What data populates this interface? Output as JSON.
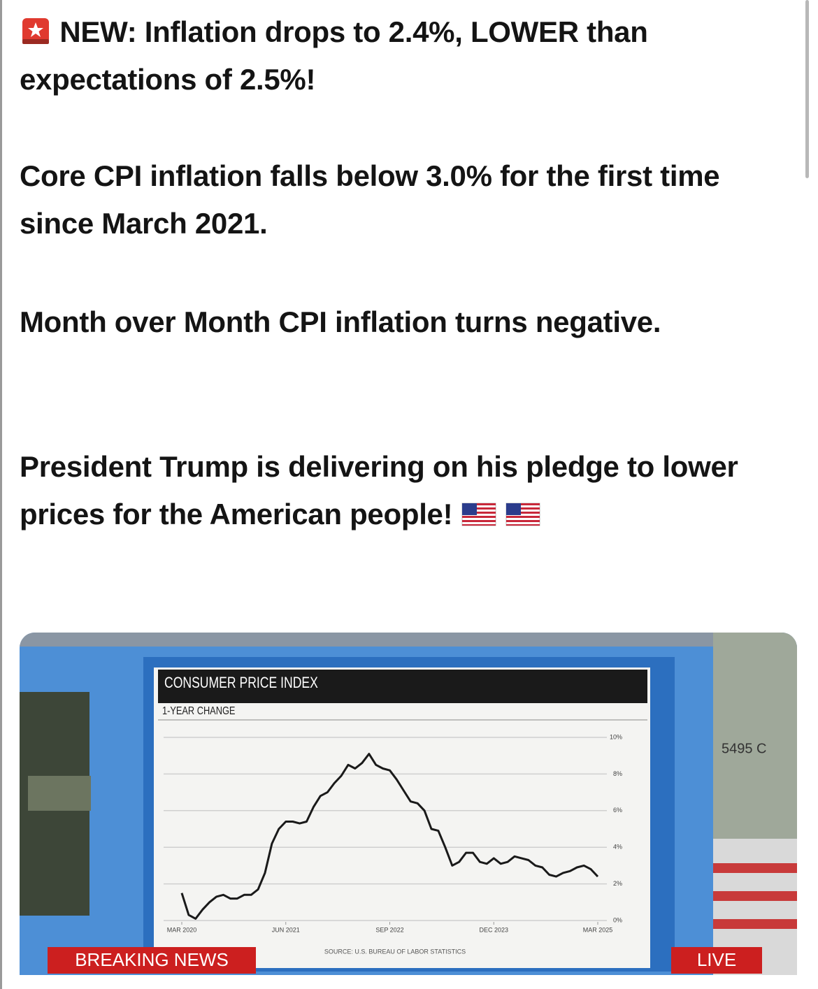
{
  "post": {
    "paragraphs": [
      "NEW: Inflation drops to 2.4%, LOWER than expectations of 2.5%!",
      "Core CPI inflation falls below 3.0% for the first time since March 2021.",
      "Month over Month CPI inflation turns negative.",
      "President Trump is delivering on his pledge to lower prices for the American people!"
    ]
  },
  "overlay": {
    "banner": "BREAKING NEWS",
    "live": "LIVE",
    "bill_serial": "5495 C"
  },
  "chart_data": {
    "type": "line",
    "title": "CONSUMER PRICE INDEX",
    "subtitle": "1-YEAR CHANGE",
    "source": "SOURCE: U.S. BUREAU OF LABOR STATISTICS",
    "categories": [
      "MAR 2020",
      null,
      null,
      null,
      null,
      null,
      null,
      null,
      null,
      null,
      null,
      null,
      null,
      null,
      null,
      "JUN 2021",
      null,
      null,
      null,
      null,
      null,
      null,
      null,
      null,
      null,
      null,
      null,
      null,
      null,
      null,
      "SEP 2022",
      null,
      null,
      null,
      null,
      null,
      null,
      null,
      null,
      null,
      null,
      null,
      null,
      null,
      null,
      "DEC 2023",
      null,
      null,
      null,
      null,
      null,
      null,
      null,
      null,
      null,
      null,
      null,
      null,
      null,
      null,
      "MAR 2025"
    ],
    "values": [
      1.5,
      0.3,
      0.1,
      0.6,
      1.0,
      1.3,
      1.4,
      1.2,
      1.2,
      1.4,
      1.4,
      1.7,
      2.6,
      4.2,
      5.0,
      5.4,
      5.4,
      5.3,
      5.4,
      6.2,
      6.8,
      7.0,
      7.5,
      7.9,
      8.5,
      8.3,
      8.6,
      9.1,
      8.5,
      8.3,
      8.2,
      7.7,
      7.1,
      6.5,
      6.4,
      6.0,
      5.0,
      4.9,
      4.0,
      3.0,
      3.2,
      3.7,
      3.7,
      3.2,
      3.1,
      3.4,
      3.1,
      3.2,
      3.5,
      3.4,
      3.3,
      3.0,
      2.9,
      2.5,
      2.4,
      2.6,
      2.7,
      2.9,
      3.0,
      2.8,
      2.4
    ],
    "color": "#1a1a1a",
    "ylim": [
      0,
      10
    ],
    "yticks": [
      {
        "value": 0,
        "label": "0%"
      },
      {
        "value": 2,
        "label": "2%"
      },
      {
        "value": 4,
        "label": "4%"
      },
      {
        "value": 6,
        "label": "6%"
      },
      {
        "value": 8,
        "label": "8%"
      },
      {
        "value": 10,
        "label": "10%"
      }
    ],
    "grid": true
  }
}
